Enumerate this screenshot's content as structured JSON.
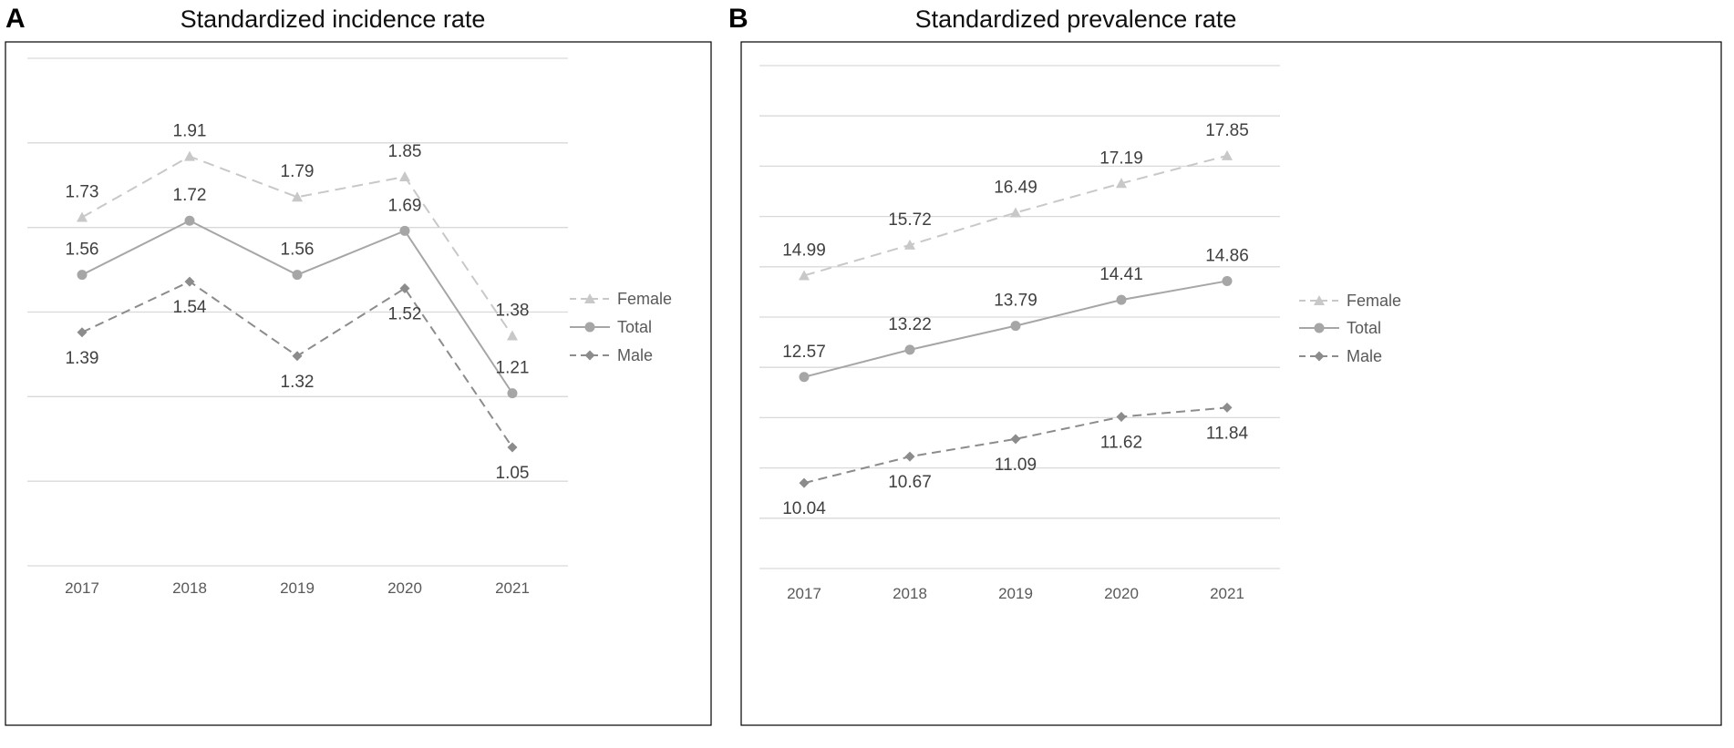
{
  "panels": [
    {
      "letter": "A",
      "title": "Standardized incidence rate"
    },
    {
      "letter": "B",
      "title": "Standardized prevalence rate"
    }
  ],
  "legend": [
    "Female",
    "Total",
    "Male"
  ],
  "colors": {
    "female": "#c8c8c8",
    "total": "#a6a6a6",
    "male": "#8c8c8c",
    "grid": "#d9d9d9",
    "label": "#404040",
    "tick": "#595959"
  },
  "chart_data": [
    {
      "type": "line",
      "title": "Standardized incidence rate",
      "categories": [
        "2017",
        "2018",
        "2019",
        "2020",
        "2021"
      ],
      "ylim": [
        0.7,
        2.2
      ],
      "grid": true,
      "legend_position": "right",
      "series": [
        {
          "name": "Female",
          "values": [
            1.73,
            1.91,
            1.79,
            1.85,
            1.38
          ],
          "labels": [
            "1.73",
            "1.91",
            "1.79",
            "1.85",
            "1.38"
          ]
        },
        {
          "name": "Total",
          "values": [
            1.56,
            1.72,
            1.56,
            1.69,
            1.21
          ],
          "labels": [
            "1.56",
            "1.72",
            "1.56",
            "1.69",
            "1.21"
          ]
        },
        {
          "name": "Male",
          "values": [
            1.39,
            1.54,
            1.32,
            1.52,
            1.05
          ],
          "labels": [
            "1.39",
            "1.54",
            "1.32",
            "1.52",
            "1.05"
          ]
        }
      ]
    },
    {
      "type": "line",
      "title": "Standardized prevalence rate",
      "categories": [
        "2017",
        "2018",
        "2019",
        "2020",
        "2021"
      ],
      "ylim": [
        8,
        20
      ],
      "grid": true,
      "legend_position": "right",
      "series": [
        {
          "name": "Female",
          "values": [
            14.99,
            15.72,
            16.49,
            17.19,
            17.85
          ],
          "labels": [
            "14.99",
            "15.72",
            "16.49",
            "17.19",
            "17.85"
          ]
        },
        {
          "name": "Total",
          "values": [
            12.57,
            13.22,
            13.79,
            14.41,
            14.86
          ],
          "labels": [
            "12.57",
            "13.22",
            "13.79",
            "14.41",
            "14.86"
          ]
        },
        {
          "name": "Male",
          "values": [
            10.04,
            10.67,
            11.09,
            11.62,
            11.84
          ],
          "labels": [
            "10.04",
            "10.67",
            "11.09",
            "11.62",
            "11.84"
          ]
        }
      ]
    }
  ]
}
